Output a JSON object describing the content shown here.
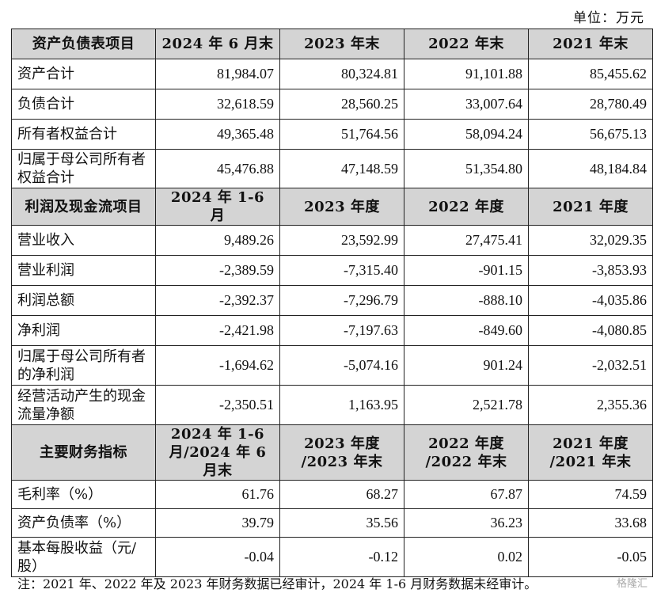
{
  "unit_label": "单位：万元",
  "balance": {
    "header": [
      "资产负债表项目",
      "2024 年 6 月末",
      "2023 年末",
      "2022 年末",
      "2021 年末"
    ],
    "rows": [
      {
        "label": "资产合计",
        "v": [
          "81,984.07",
          "80,324.81",
          "91,101.88",
          "85,455.62"
        ]
      },
      {
        "label": "负债合计",
        "v": [
          "32,618.59",
          "28,560.25",
          "33,007.64",
          "28,780.49"
        ]
      },
      {
        "label": "所有者权益合计",
        "v": [
          "49,365.48",
          "51,764.56",
          "58,094.24",
          "56,675.13"
        ]
      },
      {
        "label": "归属于母公司所有者权益合计",
        "v": [
          "45,476.88",
          "47,148.59",
          "51,354.80",
          "48,184.84"
        ]
      }
    ]
  },
  "profit": {
    "header": [
      "利润及现金流项目",
      "2024 年 1-6 月",
      "2023 年度",
      "2022 年度",
      "2021 年度"
    ],
    "rows": [
      {
        "label": "营业收入",
        "v": [
          "9,489.26",
          "23,592.99",
          "27,475.41",
          "32,029.35"
        ]
      },
      {
        "label": "营业利润",
        "v": [
          "-2,389.59",
          "-7,315.40",
          "-901.15",
          "-3,853.93"
        ]
      },
      {
        "label": "利润总额",
        "v": [
          "-2,392.37",
          "-7,296.79",
          "-888.10",
          "-4,035.86"
        ]
      },
      {
        "label": "净利润",
        "v": [
          "-2,421.98",
          "-7,197.63",
          "-849.60",
          "-4,080.85"
        ]
      },
      {
        "label": "归属于母公司所有者的净利润",
        "v": [
          "-1,694.62",
          "-5,074.16",
          "901.24",
          "-2,032.51"
        ]
      },
      {
        "label": "经营活动产生的现金流量净额",
        "v": [
          "-2,350.51",
          "1,163.95",
          "2,521.78",
          "2,355.36"
        ]
      }
    ]
  },
  "indicators": {
    "header": [
      "主要财务指标",
      "2024 年 1-6 月/2024 年 6 月末",
      "2023 年度 /2023 年末",
      "2022 年度 /2022 年末",
      "2021 年度 /2021 年末"
    ],
    "rows": [
      {
        "label": "毛利率（%）",
        "v": [
          "61.76",
          "68.27",
          "67.87",
          "74.59"
        ]
      },
      {
        "label": "资产负债率（%）",
        "v": [
          "39.79",
          "35.56",
          "36.23",
          "33.68"
        ]
      },
      {
        "label": "基本每股收益（元/股）",
        "v": [
          "-0.04",
          "-0.12",
          "0.02",
          "-0.05"
        ]
      }
    ]
  },
  "note": "注：2021 年、2022 年及 2023 年财务数据已经审计，2024 年 1-6 月财务数据未经审计。",
  "watermark": "格隆汇"
}
